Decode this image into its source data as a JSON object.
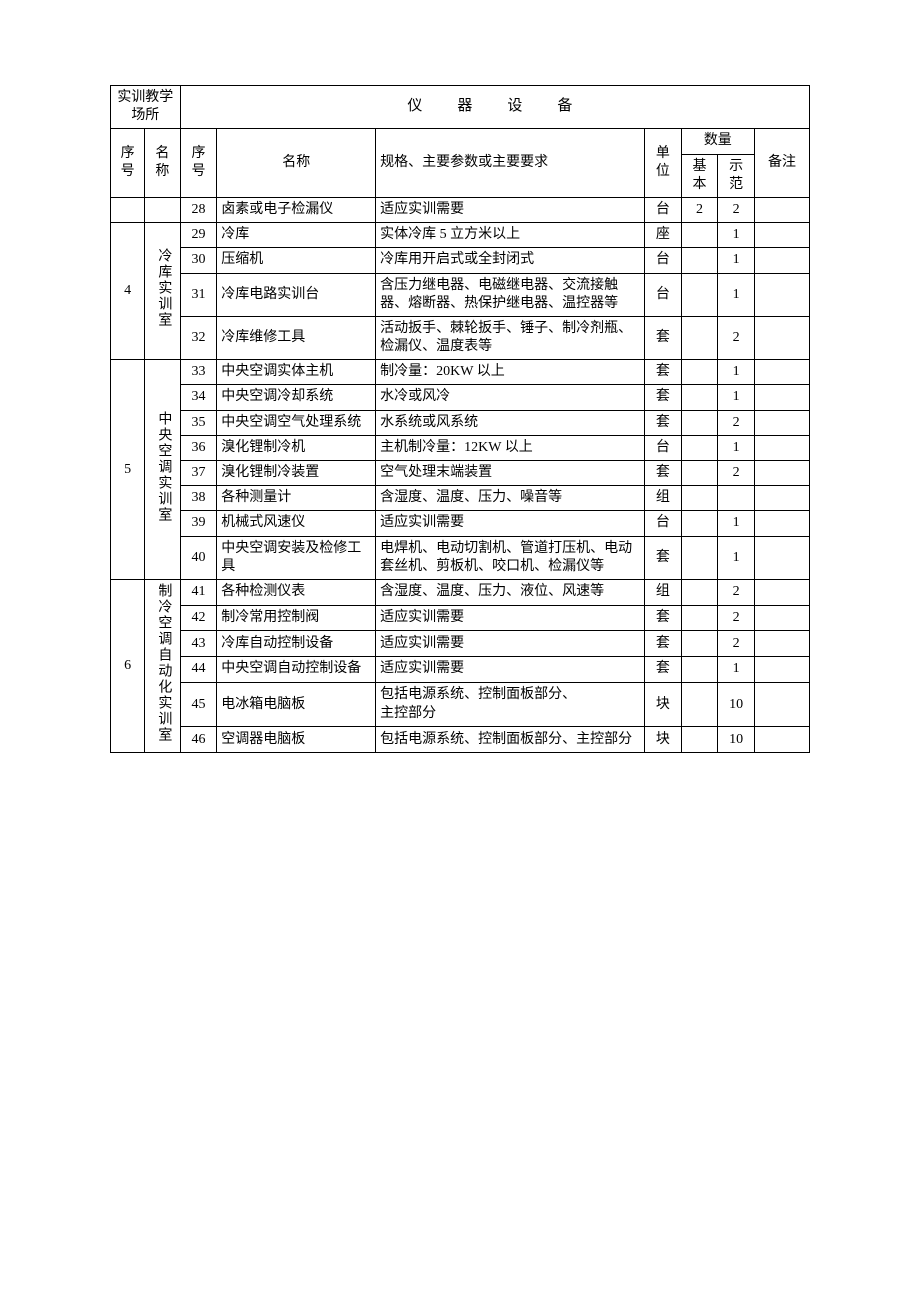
{
  "headers": {
    "location_group": "实训教学场所",
    "equipment_group": "仪　器　设　备",
    "seq_no": "序号",
    "name": "名称",
    "item_no": "序号",
    "item_name": "名称",
    "spec": "规格、主要参数或主要要求",
    "unit": "单位",
    "quantity": "数量",
    "qty_basic": "基本",
    "qty_demo": "示范",
    "remark": "备注"
  },
  "rows": [
    {
      "seq": "",
      "loc": "",
      "no": "28",
      "name": "卤素或电子检漏仪",
      "spec": "适应实训需要",
      "unit": "台",
      "basic": "2",
      "demo": "2",
      "remark": ""
    },
    {
      "seq": "4",
      "seq_rowspan": 4,
      "loc": "冷库实训室",
      "loc_rowspan": 4,
      "no": "29",
      "name": "冷库",
      "spec": "实体冷库 5 立方米以上",
      "unit": "座",
      "basic": "",
      "demo": "1",
      "remark": ""
    },
    {
      "no": "30",
      "name": "压缩机",
      "spec": "冷库用开启式或全封闭式",
      "unit": "台",
      "basic": "",
      "demo": "1",
      "remark": ""
    },
    {
      "no": "31",
      "name": "冷库电路实训台",
      "spec": "含压力继电器、电磁继电器、交流接触器、熔断器、热保护继电器、温控器等",
      "unit": "台",
      "basic": "",
      "demo": "1",
      "remark": ""
    },
    {
      "no": "32",
      "name": "冷库维修工具",
      "spec": "活动扳手、棘轮扳手、锤子、制冷剂瓶、检漏仪、温度表等",
      "unit": "套",
      "basic": "",
      "demo": "2",
      "remark": ""
    },
    {
      "seq": "5",
      "seq_rowspan": 8,
      "loc": "中央空调实训室",
      "loc_rowspan": 8,
      "no": "33",
      "name": "中央空调实体主机",
      "spec": "制冷量：20KW 以上",
      "unit": "套",
      "basic": "",
      "demo": "1",
      "remark": ""
    },
    {
      "no": "34",
      "name": "中央空调冷却系统",
      "spec": "水冷或风冷",
      "unit": "套",
      "basic": "",
      "demo": "1",
      "remark": ""
    },
    {
      "no": "35",
      "name": "中央空调空气处理系统",
      "spec": "水系统或风系统",
      "unit": "套",
      "basic": "",
      "demo": "2",
      "remark": ""
    },
    {
      "no": "36",
      "name": "溴化锂制冷机",
      "spec": "主机制冷量：12KW 以上",
      "unit": "台",
      "basic": "",
      "demo": "1",
      "remark": ""
    },
    {
      "no": "37",
      "name": "溴化锂制冷装置",
      "spec": "空气处理末端装置",
      "unit": "套",
      "basic": "",
      "demo": "2",
      "remark": ""
    },
    {
      "no": "38",
      "name": "各种测量计",
      "spec": "含湿度、温度、压力、噪音等",
      "unit": "组",
      "basic": "",
      "demo": "",
      "remark": ""
    },
    {
      "no": "39",
      "name": "机械式风速仪",
      "spec": "适应实训需要",
      "unit": "台",
      "basic": "",
      "demo": "1",
      "remark": ""
    },
    {
      "no": "40",
      "name": "中央空调安装及检修工具",
      "spec": "电焊机、电动切割机、管道打压机、电动套丝机、剪板机、咬口机、检漏仪等",
      "unit": "套",
      "basic": "",
      "demo": "1",
      "remark": ""
    },
    {
      "seq": "6",
      "seq_rowspan": 6,
      "loc": "制冷空调自动化实训室",
      "loc_rowspan": 6,
      "no": "41",
      "name": "各种检测仪表",
      "spec": "含湿度、温度、压力、液位、风速等",
      "unit": "组",
      "basic": "",
      "demo": "2",
      "remark": ""
    },
    {
      "no": "42",
      "name": "制冷常用控制阀",
      "spec": "适应实训需要",
      "unit": "套",
      "basic": "",
      "demo": "2",
      "remark": ""
    },
    {
      "no": "43",
      "name": "冷库自动控制设备",
      "spec": "适应实训需要",
      "unit": "套",
      "basic": "",
      "demo": "2",
      "remark": ""
    },
    {
      "no": "44",
      "name": "中央空调自动控制设备",
      "spec": "适应实训需要",
      "unit": "套",
      "basic": "",
      "demo": "1",
      "remark": ""
    },
    {
      "no": "45",
      "name": "电冰箱电脑板",
      "spec": "包括电源系统、控制面板部分、\n主控部分",
      "unit": "块",
      "basic": "",
      "demo": "10",
      "remark": ""
    },
    {
      "no": "46",
      "name": "空调器电脑板",
      "spec": "包括电源系统、控制面板部分、主控部分",
      "unit": "块",
      "basic": "",
      "demo": "10",
      "remark": ""
    }
  ]
}
